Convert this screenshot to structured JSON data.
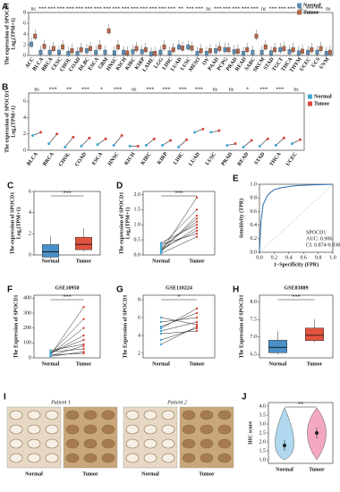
{
  "chart_data": [
    {
      "type": "box",
      "letter": "A",
      "y_label": "The expression of SPOCD1",
      "y_label2": "Log₂(TPM+1)",
      "categories": [
        "ACC",
        "BLCA",
        "BRCA",
        "CESC",
        "CHOL",
        "COAD",
        "DLBC",
        "ESCA",
        "GBM",
        "HNSC",
        "KICH",
        "KIRC",
        "KIRP",
        "LAML",
        "LGG",
        "LIHC",
        "LUAD",
        "LUSC",
        "MESO",
        "OV",
        "PAAD",
        "PCPG",
        "PRAD",
        "READ",
        "SARC",
        "SKCM",
        "STAD",
        "TGCT",
        "THCA",
        "THYM",
        "UCEC",
        "UCS",
        "UVM"
      ],
      "series": [
        {
          "name": "Normal",
          "color": "#5b8db8",
          "values": [
            2,
            0.5,
            0.5,
            0.5,
            0.3,
            0.3,
            0.8,
            0.5,
            0.5,
            0.4,
            0.5,
            0.6,
            0.6,
            0.2,
            0.5,
            0.4,
            1.5,
            1.5,
            0.3,
            0.3,
            0.8,
            1,
            0.6,
            0.3,
            0.5,
            0.5,
            0.4,
            1,
            0.6,
            0.4,
            0.5,
            0.5,
            0.3
          ]
        },
        {
          "name": "Tumor",
          "color": "#b5674b",
          "values": [
            3.5,
            1.6,
            1.2,
            1.5,
            0.8,
            1,
            1.2,
            1.5,
            4.5,
            1.5,
            0.4,
            1.2,
            1,
            0.3,
            1.5,
            1,
            1.3,
            1.3,
            0.8,
            0.8,
            1.2,
            1,
            0.7,
            1,
            3.5,
            1.5,
            1,
            1.2,
            1,
            0.7,
            1,
            1.2,
            0.5
          ]
        }
      ],
      "annotations": [
        "ns",
        "***",
        "***",
        "***",
        "***",
        "***",
        "***",
        "***",
        "***",
        "***",
        "***",
        "***",
        "***",
        "***",
        "***",
        "***",
        "**",
        "***",
        "***",
        "ns",
        "***",
        "***",
        "***",
        "***",
        "***",
        "ns",
        "***",
        "***",
        "***",
        "ns",
        "***",
        "***",
        "ns"
      ],
      "ylim": [
        0,
        8
      ],
      "yticks": [
        0,
        2,
        4,
        6,
        8
      ]
    },
    {
      "type": "paired_groups",
      "letter": "B",
      "y_label": "The expression of SPOCD1",
      "y_label2": "Log₂(TPM+1)",
      "categories": [
        "BLCA",
        "BRCA",
        "CHOL",
        "COAD",
        "ESCA",
        "HNSC",
        "KICH",
        "KIRC",
        "KIRP",
        "LIHC",
        "LUAD",
        "LUSC",
        "PRAD",
        "READ",
        "STAD",
        "THCA",
        "UCEC"
      ],
      "series": [
        {
          "name": "Normal",
          "color": "#3fa9d6",
          "values": [
            1.8,
            0.8,
            0.4,
            0.5,
            0.7,
            0.6,
            0.5,
            0.6,
            0.6,
            0.4,
            2.2,
            2.2,
            0.6,
            0.4,
            0.5,
            0.6,
            0.8
          ]
        },
        {
          "name": "Tumor",
          "color": "#d9473a",
          "values": [
            2.2,
            2,
            1.6,
            1.5,
            1.4,
            1.8,
            0.5,
            1.4,
            1.2,
            1.3,
            2.6,
            2.4,
            0.8,
            1.2,
            1.4,
            1.5,
            1.3
          ]
        }
      ],
      "annotations": [
        "ns",
        "***",
        "**",
        "***",
        "*",
        "***",
        "ns",
        "***",
        "***",
        "***",
        "***",
        "ns",
        "ns",
        "*",
        "***",
        "***",
        "ns"
      ],
      "ylim": [
        0,
        7
      ],
      "yticks": [
        0,
        2,
        4,
        6
      ]
    },
    {
      "type": "box",
      "letter": "C",
      "y_label": "The expression of SPOCD1",
      "y_label2": "Log₂(TPM+1)",
      "categories": [
        "Normal",
        "Tumor"
      ],
      "values": [
        0.3,
        1.0
      ],
      "colors": [
        "#4a8fc7",
        "#e0533f"
      ],
      "annotation": "***",
      "ylim": [
        0,
        6
      ],
      "yticks": [
        0,
        2,
        4,
        6
      ]
    },
    {
      "type": "paired",
      "letter": "D",
      "y_label": "The expression of SPOCD1",
      "y_label2": "Log₂(TPM+1)",
      "categories": [
        "Normal",
        "Tumor"
      ],
      "pairs": [
        [
          0.1,
          1.9
        ],
        [
          0.2,
          1.2
        ],
        [
          0.15,
          0.9
        ],
        [
          0.3,
          1.5
        ],
        [
          0.05,
          0.6
        ],
        [
          0.4,
          1.0
        ],
        [
          0.2,
          0.8
        ],
        [
          0.1,
          1.3
        ],
        [
          0.35,
          0.7
        ],
        [
          0.25,
          1.1
        ]
      ],
      "annotation": "***",
      "ylim": [
        0,
        2.1
      ],
      "yticks": [
        {
          "value": 0,
          "label": "0.0"
        },
        {
          "value": 0.5,
          "label": "0.5"
        },
        {
          "value": 1,
          "label": "1.0"
        },
        {
          "value": 1.5,
          "label": "1.5"
        },
        {
          "value": 2,
          "label": "2.0"
        }
      ]
    },
    {
      "type": "line",
      "letter": "E",
      "x_label": "1−Specificity (FPR)",
      "y_label": "Sensitivity (TPR)",
      "x": [
        0,
        0.02,
        0.05,
        0.1,
        0.15,
        0.2,
        0.3,
        0.5,
        0.7,
        1
      ],
      "values": [
        0,
        0.45,
        0.7,
        0.82,
        0.88,
        0.92,
        0.95,
        0.98,
        0.99,
        1
      ],
      "color": "#2b6cb0",
      "notes": [
        "SPOCD1",
        "AUC: 0.906",
        "CI: 0.874-0.938"
      ],
      "xlim": [
        0,
        1
      ],
      "ylim": [
        0,
        1
      ],
      "xticks": [
        {
          "value": 0,
          "label": "0.0"
        },
        {
          "value": 0.2,
          "label": "0.2"
        },
        {
          "value": 0.4,
          "label": "0.4"
        },
        {
          "value": 0.6,
          "label": "0.6"
        },
        {
          "value": 0.8,
          "label": "0.8"
        },
        {
          "value": 1,
          "label": "1.0"
        }
      ],
      "yticks": [
        {
          "value": 0,
          "label": "0.0"
        },
        {
          "value": 0.2,
          "label": "0.2"
        },
        {
          "value": 0.4,
          "label": "0.4"
        },
        {
          "value": 0.6,
          "label": "0.6"
        },
        {
          "value": 0.8,
          "label": "0.8"
        },
        {
          "value": 1,
          "label": "1.0"
        }
      ]
    },
    {
      "type": "paired",
      "letter": "F",
      "title": "GSE10950",
      "y_label": "The Expression of SPOCD1",
      "categories": [
        "Normal",
        "Tumor"
      ],
      "pairs": [
        [
          20,
          340
        ],
        [
          30,
          150
        ],
        [
          15,
          80
        ],
        [
          40,
          60
        ],
        [
          25,
          200
        ],
        [
          10,
          40
        ],
        [
          35,
          120
        ],
        [
          20,
          30
        ],
        [
          50,
          90
        ],
        [
          30,
          260
        ]
      ],
      "annotation": "***",
      "ylim": [
        0,
        420
      ],
      "yticks": [
        0,
        100,
        200,
        300,
        400
      ]
    },
    {
      "type": "paired",
      "letter": "G",
      "title": "GSE110224",
      "y_label": "The Expression of SPOCD1",
      "categories": [
        "Normal",
        "Tumor"
      ],
      "pairs": [
        [
          4.5,
          5.5
        ],
        [
          5,
          6.5
        ],
        [
          3.5,
          4.8
        ],
        [
          6,
          5.2
        ],
        [
          4.8,
          7
        ],
        [
          5.5,
          6
        ],
        [
          3,
          5
        ],
        [
          4.2,
          4.5
        ]
      ],
      "annotation": "*",
      "ylim": [
        1.5,
        8.5
      ],
      "yticks": [
        2,
        4,
        6,
        8
      ]
    },
    {
      "type": "box",
      "letter": "H",
      "title": "GSE83889",
      "y_label": "The Expression of SPOCD1",
      "categories": [
        "Normal",
        "Tumor"
      ],
      "values": [
        6.7,
        7.05
      ],
      "colors": [
        "#4a8fc7",
        "#e0533f"
      ],
      "annotation": "***",
      "ylim": [
        6.4,
        8.2
      ],
      "yticks": [
        {
          "value": 6.5,
          "label": "6.5"
        },
        {
          "value": 7,
          "label": "7.0"
        },
        {
          "value": 7.5,
          "label": "7.5"
        },
        {
          "value": 8,
          "label": "8.0"
        }
      ]
    },
    {
      "type": "violin",
      "letter": "J",
      "y_label": "IHC score",
      "categories": [
        "Normal",
        "Tumor"
      ],
      "values": [
        1.8,
        2.5
      ],
      "colors": [
        "#8ec9ea",
        "#ee82a8"
      ],
      "annotation": "**",
      "ylim": [
        0.8,
        4.2
      ],
      "yticks": [
        {
          "value": 1,
          "label": "1.0"
        },
        {
          "value": 1.5,
          "label": "1.5"
        },
        {
          "value": 2,
          "label": "2.0"
        },
        {
          "value": 2.5,
          "label": "2.5"
        },
        {
          "value": 3,
          "label": "3.0"
        },
        {
          "value": 3.5,
          "label": "3.5"
        },
        {
          "value": 4,
          "label": "4.0"
        }
      ]
    }
  ],
  "image_panel": {
    "letter": "I",
    "patients": [
      "Patient 1",
      "Patient 2"
    ],
    "labels": [
      "Normal",
      "Tumor",
      "Normal",
      "Tumor"
    ]
  }
}
